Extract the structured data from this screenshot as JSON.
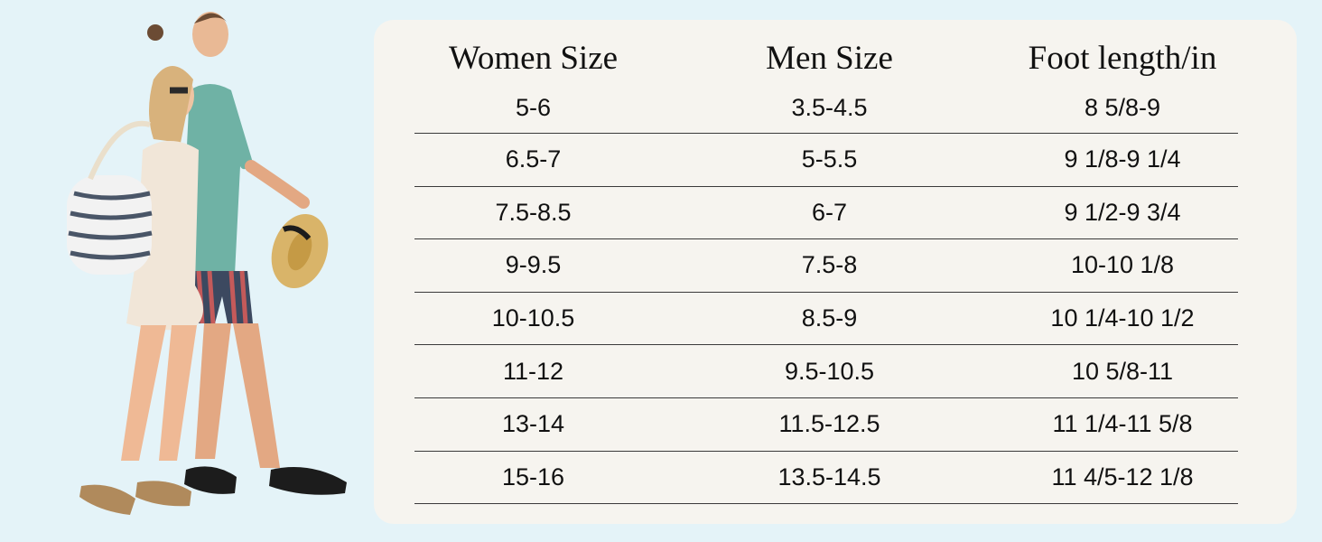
{
  "headers": [
    "Women Size",
    "Men Size",
    "Foot length/in"
  ],
  "rows": [
    [
      "5-6",
      "3.5-4.5",
      "8 5/8-9"
    ],
    [
      "6.5-7",
      "5-5.5",
      "9 1/8-9 1/4"
    ],
    [
      "7.5-8.5",
      "6-7",
      "9 1/2-9 3/4"
    ],
    [
      "9-9.5",
      "7.5-8",
      "10-10 1/8"
    ],
    [
      "10-10.5",
      "8.5-9",
      "10 1/4-10 1/2"
    ],
    [
      "11-12",
      "9.5-10.5",
      "10 5/8-11"
    ],
    [
      "13-14",
      "11.5-12.5",
      "11 1/4-11 5/8"
    ],
    [
      "15-16",
      "13.5-14.5",
      "11 4/5-12 1/8"
    ]
  ],
  "colors": {
    "background": "#e4f3f8",
    "card": "#f6f4ef",
    "text": "#111111",
    "rule": "#3a3a3a"
  }
}
